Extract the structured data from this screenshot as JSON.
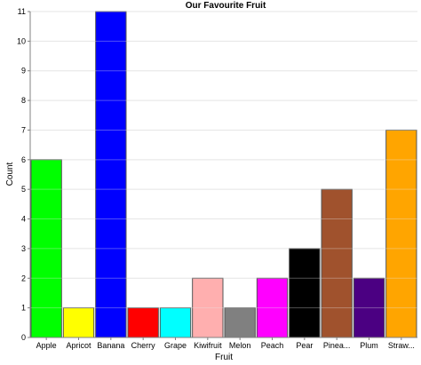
{
  "chart_data": {
    "type": "bar",
    "title": "Our Favourite Fruit",
    "xlabel": "Fruit",
    "ylabel": "Count",
    "ylim": [
      0,
      11
    ],
    "yticks": [
      0,
      1,
      2,
      3,
      4,
      5,
      6,
      7,
      8,
      9,
      10,
      11
    ],
    "grid": true,
    "legend": "none",
    "categories": [
      "Apple",
      "Apricot",
      "Banana",
      "Cherry",
      "Grape",
      "Kiwifruit",
      "Melon",
      "Peach",
      "Pear",
      "Pinea...",
      "Plum",
      "Straw..."
    ],
    "values": [
      6,
      1,
      11,
      1,
      1,
      2,
      1,
      2,
      3,
      5,
      2,
      7
    ],
    "colors": [
      "#00ff00",
      "#ffff00",
      "#0000ff",
      "#ff0000",
      "#00ffff",
      "#ffafaf",
      "#808080",
      "#ff00ff",
      "#000000",
      "#a0522d",
      "#4b0082",
      "#ffa500"
    ]
  }
}
